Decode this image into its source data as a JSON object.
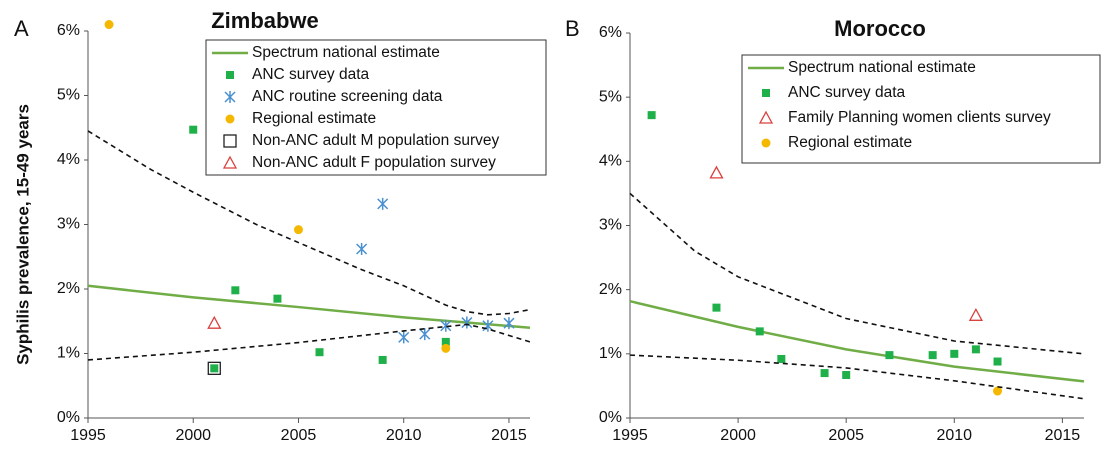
{
  "chart_data": [
    {
      "type": "line",
      "panel": "A",
      "title": "Zimbabwe",
      "ylabel": "Syphilis prevalence, 15-49 years",
      "xlim": [
        1995,
        2016
      ],
      "xticks": [
        1995,
        2000,
        2005,
        2010,
        2015
      ],
      "ylim": [
        0,
        6
      ],
      "yticks": [
        {
          "value": 0,
          "label": "0%"
        },
        {
          "value": 1,
          "label": "1%"
        },
        {
          "value": 2,
          "label": "2%"
        },
        {
          "value": 3,
          "label": "3%"
        },
        {
          "value": 4,
          "label": "4%"
        },
        {
          "value": 5,
          "label": "5%"
        },
        {
          "value": 6,
          "label": "6%"
        }
      ],
      "grid": false,
      "legend": "upper right",
      "series": [
        {
          "name": "Spectrum national estimate",
          "marker": "line",
          "color": "#70ad47",
          "x": [
            1995,
            2000,
            2005,
            2010,
            2016
          ],
          "values": [
            2.05,
            1.87,
            1.72,
            1.56,
            1.4
          ]
        },
        {
          "name": "ANC survey data",
          "marker": "square",
          "color": "#1fb04a",
          "x": [
            2000,
            2001,
            2002,
            2004,
            2006,
            2009,
            2012
          ],
          "values": [
            4.47,
            0.77,
            1.98,
            1.85,
            1.02,
            0.9,
            1.18
          ]
        },
        {
          "name": "ANC routine screening data",
          "marker": "asterisk",
          "color": "#4a90d0",
          "x": [
            2008,
            2009,
            2010,
            2011,
            2012,
            2013,
            2014,
            2015
          ],
          "values": [
            2.62,
            3.32,
            1.25,
            1.3,
            1.43,
            1.48,
            1.43,
            1.47
          ]
        },
        {
          "name": "Regional estimate",
          "marker": "circle",
          "color": "#f5b800",
          "x": [
            1996,
            2005,
            2012
          ],
          "values": [
            6.1,
            2.92,
            1.08
          ]
        },
        {
          "name": "Non-ANC adult M population survey",
          "marker": "open-square",
          "color": "#222222",
          "x": [
            2001
          ],
          "values": [
            0.77
          ]
        },
        {
          "name": "Non-ANC adult F population survey",
          "marker": "open-triangle",
          "color": "#d9413e",
          "x": [
            2001
          ],
          "values": [
            1.47
          ]
        },
        {
          "marker": "dashed",
          "color": "#111111",
          "x": [
            1995,
            1998,
            2000,
            2003,
            2005,
            2008,
            2010,
            2012,
            2013,
            2014,
            2015,
            2016
          ],
          "values": [
            4.45,
            3.85,
            3.5,
            3.0,
            2.72,
            2.3,
            2.05,
            1.75,
            1.65,
            1.6,
            1.62,
            1.68
          ]
        },
        {
          "marker": "dashed",
          "color": "#111111",
          "x": [
            1995,
            2000,
            2005,
            2010,
            2013,
            2014,
            2016
          ],
          "values": [
            0.9,
            1.02,
            1.17,
            1.35,
            1.45,
            1.38,
            1.18
          ]
        }
      ]
    },
    {
      "type": "line",
      "panel": "B",
      "title": "Morocco",
      "xlim": [
        1995,
        2016
      ],
      "xticks": [
        1995,
        2000,
        2005,
        2010,
        2015
      ],
      "ylim": [
        0,
        6
      ],
      "yticks": [
        {
          "value": 0,
          "label": "0%"
        },
        {
          "value": 1,
          "label": "1%"
        },
        {
          "value": 2,
          "label": "2%"
        },
        {
          "value": 3,
          "label": "3%"
        },
        {
          "value": 4,
          "label": "4%"
        },
        {
          "value": 5,
          "label": "5%"
        },
        {
          "value": 6,
          "label": "6%"
        }
      ],
      "grid": false,
      "legend": "upper right",
      "series": [
        {
          "name": "Spectrum national estimate",
          "marker": "line",
          "color": "#70ad47",
          "x": [
            1995,
            2000,
            2005,
            2010,
            2016
          ],
          "values": [
            1.82,
            1.42,
            1.07,
            0.8,
            0.57
          ]
        },
        {
          "name": "ANC survey data",
          "marker": "square",
          "color": "#1fb04a",
          "x": [
            1996,
            1999,
            2001,
            2002,
            2004,
            2005,
            2007,
            2009,
            2010,
            2011,
            2012
          ],
          "values": [
            4.72,
            1.72,
            1.35,
            0.92,
            0.7,
            0.67,
            0.98,
            0.98,
            1.0,
            1.07,
            0.88
          ]
        },
        {
          "name": "Family Planning women clients survey",
          "marker": "open-triangle",
          "color": "#d9413e",
          "x": [
            1999,
            2011
          ],
          "values": [
            3.82,
            1.6
          ]
        },
        {
          "name": "Regional estimate",
          "marker": "circle",
          "color": "#f5b800",
          "x": [
            2012
          ],
          "values": [
            0.42
          ]
        },
        {
          "marker": "dashed",
          "color": "#111111",
          "x": [
            1995,
            1998,
            2000,
            2005,
            2010,
            2016
          ],
          "values": [
            3.5,
            2.6,
            2.2,
            1.55,
            1.2,
            1.0
          ]
        },
        {
          "marker": "dashed",
          "color": "#111111",
          "x": [
            1995,
            2000,
            2005,
            2010,
            2016
          ],
          "values": [
            0.98,
            0.9,
            0.78,
            0.58,
            0.3
          ]
        }
      ]
    }
  ]
}
